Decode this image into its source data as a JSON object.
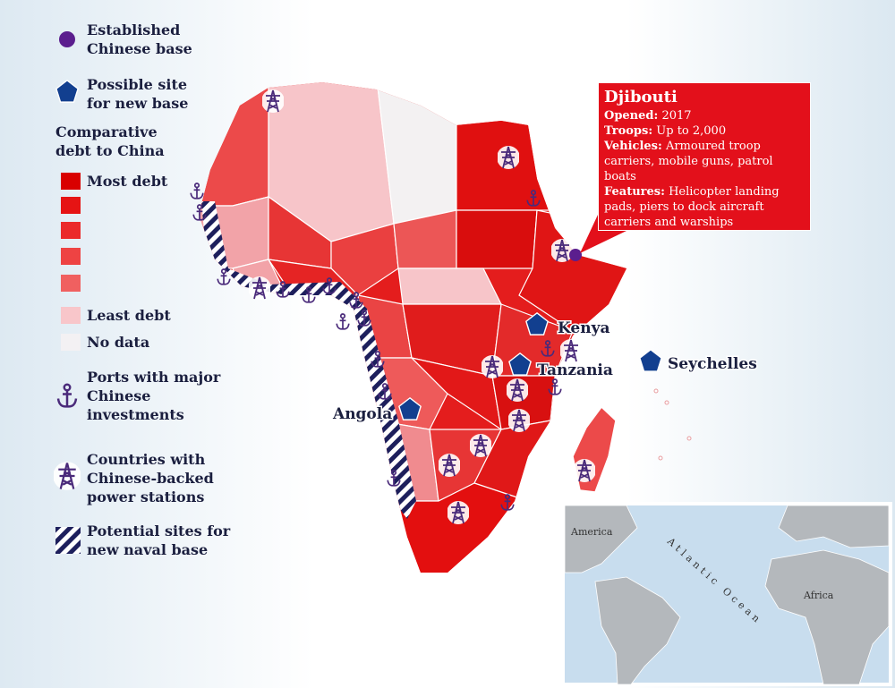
{
  "legend": {
    "established_base": "Established Chinese base",
    "possible_site": "Possible site for new base",
    "debt_title": "Comparative debt to China",
    "most_debt": "Most debt",
    "least_debt": "Least debt",
    "no_data": "No data",
    "ports": "Ports with major Chinese investments",
    "power": "Countries with Chinese-backed power stations",
    "naval": "Potential sites for new naval base"
  },
  "callout": {
    "title": "Djibouti",
    "rows": [
      {
        "label": "Opened:",
        "text": "2017"
      },
      {
        "label": "Troops:",
        "text": "Up to 2,000"
      },
      {
        "label": "Vehicles:",
        "text": "Armoured troop carriers, mobile guns, patrol boats"
      },
      {
        "label": "Features:",
        "text": "Helicopter landing pads, piers to dock aircraft carriers and warships"
      }
    ]
  },
  "map_labels": [
    "Kenya",
    "Tanzania",
    "Seychelles",
    "Angola"
  ],
  "inset": {
    "labels": [
      "America",
      "Atlantic Ocean",
      "Africa"
    ]
  }
}
